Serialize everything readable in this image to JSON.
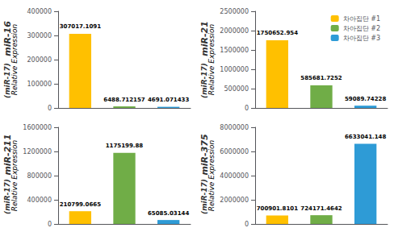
{
  "chart_data": [
    {
      "type": "bar",
      "title": "miR-16",
      "subtitle": "(miR-17)",
      "ylabel": "Relative Expression",
      "categories": [
        "차아집단 #1",
        "차아집단 #2",
        "차아집단 #3"
      ],
      "values": [
        307017.1091,
        6488.712157,
        4691.071433
      ],
      "colors": [
        "#FFC000",
        "#70AD47",
        "#2E9BD6"
      ],
      "ylim": [
        0,
        400000
      ],
      "yticks": [
        0,
        100000,
        200000,
        300000,
        400000
      ],
      "data_labels": true,
      "tick_labels": "y",
      "grid": false
    },
    {
      "type": "bar",
      "title": "miR-21",
      "subtitle": "(miR-17)",
      "ylabel": "Relative Expression",
      "categories": [
        "차아집단 #1",
        "차아집단 #2",
        "차아집단 #3"
      ],
      "values": [
        1750652.954,
        585681.7252,
        59089.74228
      ],
      "colors": [
        "#FFC000",
        "#70AD47",
        "#2E9BD6"
      ],
      "ylim": [
        0,
        2500000
      ],
      "yticks": [
        0,
        500000,
        1000000,
        1500000,
        2000000,
        2500000
      ],
      "data_labels": true,
      "tick_labels": "y",
      "grid": false,
      "legend": "upper right"
    },
    {
      "type": "bar",
      "title": "miR-211",
      "subtitle": "(miR-17)",
      "ylabel": "Relative Expression",
      "categories": [
        "차아집단 #1",
        "차아집단 #2",
        "차아집단 #3"
      ],
      "values": [
        210799.0665,
        1175199.88,
        65085.03144
      ],
      "colors": [
        "#FFC000",
        "#70AD47",
        "#2E9BD6"
      ],
      "ylim": [
        0,
        1600000
      ],
      "yticks": [
        0,
        400000,
        800000,
        1200000,
        1600000
      ],
      "data_labels": true,
      "tick_labels": "y",
      "grid": false
    },
    {
      "type": "bar",
      "title": "miR-375",
      "subtitle": "(miR-17)",
      "ylabel": "Relative Expression",
      "categories": [
        "차아집단 #1",
        "차아집단 #2",
        "차아집단 #3"
      ],
      "values": [
        700901.8101,
        724171.4642,
        6633041.148
      ],
      "colors": [
        "#FFC000",
        "#70AD47",
        "#2E9BD6"
      ],
      "ylim": [
        0,
        8000000
      ],
      "yticks": [
        0,
        2000000,
        4000000,
        6000000,
        8000000
      ],
      "data_labels": true,
      "tick_labels": "y",
      "grid": false
    }
  ]
}
